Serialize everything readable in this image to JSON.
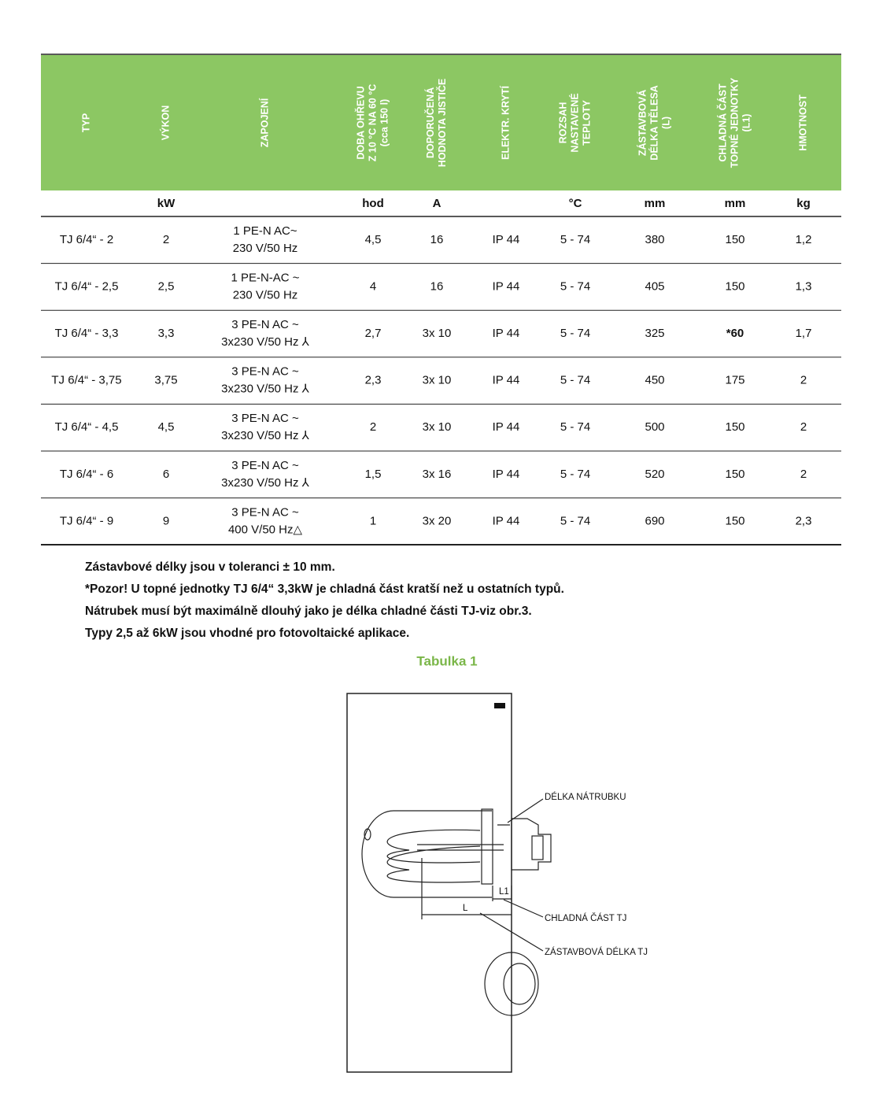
{
  "table": {
    "headers": [
      [
        "TYP"
      ],
      [
        "VÝKON"
      ],
      [
        "ZAPOJENÍ"
      ],
      [
        "DOBA OHŘEVU",
        "Z 10 °C NA 60 °C",
        "(cca 150 l)"
      ],
      [
        "DOPORUČENÁ",
        "HODNOTA JISTIČE"
      ],
      [
        "ELEKTR. KRYTÍ"
      ],
      [
        "ROZSAH",
        "NASTAVENÉ",
        "TEPLOTY"
      ],
      [
        "ZÁSTAVBOVÁ",
        "DÉLKA TĚLESA",
        "(L)"
      ],
      [
        "CHLADNÁ ČÁST",
        "TOPNÉ JEDNOTKY",
        "(L1)"
      ],
      [
        "HMOTNOST"
      ]
    ],
    "units": [
      null,
      "kW",
      null,
      "hod",
      "A",
      null,
      "°C",
      "mm",
      "mm",
      "kg"
    ],
    "rows": [
      [
        "TJ 6/4“ - 2",
        "2",
        [
          "1 PE-N AC~",
          "230 V/50 Hz"
        ],
        "4,5",
        "16",
        "IP 44",
        "5 - 74",
        "380",
        "150",
        "1,2"
      ],
      [
        "TJ 6/4“ - 2,5",
        "2,5",
        [
          "1 PE-N-AC ~",
          "230 V/50 Hz"
        ],
        "4",
        "16",
        "IP 44",
        "5 - 74",
        "405",
        "150",
        "1,3"
      ],
      [
        "TJ 6/4“ - 3,3",
        "3,3",
        [
          "3 PE-N AC ~",
          "3x230 V/50 Hz ⅄"
        ],
        "2,7",
        "3x 10",
        "IP 44",
        "5 - 74",
        "325",
        "*60",
        "1,7"
      ],
      [
        "TJ 6/4“ - 3,75",
        "3,75",
        [
          "3 PE-N AC ~",
          "3x230 V/50 Hz ⅄"
        ],
        "2,3",
        "3x 10",
        "IP 44",
        "5 - 74",
        "450",
        "175",
        "2"
      ],
      [
        "TJ 6/4“ - 4,5",
        "4,5",
        [
          "3 PE-N AC ~",
          "3x230 V/50 Hz ⅄"
        ],
        "2",
        "3x 10",
        "IP 44",
        "5 - 74",
        "500",
        "150",
        "2"
      ],
      [
        "TJ 6/4“ - 6",
        "6",
        [
          "3 PE-N AC ~",
          "3x230 V/50 Hz ⅄"
        ],
        "1,5",
        "3x 16",
        "IP 44",
        "5 - 74",
        "520",
        "150",
        "2"
      ],
      [
        "TJ 6/4“ - 9",
        "9",
        [
          "3 PE-N AC ~",
          "400 V/50 Hz△"
        ],
        "1",
        "3x 20",
        "IP 44",
        "5 - 74",
        "690",
        "150",
        "2,3"
      ]
    ]
  },
  "notes": [
    "Zástavbové délky jsou v toleranci ± 10 mm.",
    "*Pozor! U topné jednotky TJ 6/4“ 3,3kW je chladná část kratší než u ostatních typů.",
    "Nátrubek musí být maximálně dlouhý jako je délka chladné části TJ-viz obr.3.",
    "Typy 2,5 až 6kW jsou vhodné pro fotovoltaické aplikace."
  ],
  "caption": "Tabulka 1",
  "diagram": {
    "labels": [
      "DÉLKA NÁTRUBKU",
      "CHLADNÁ ČÁST TJ",
      "ZÁSTAVBOVÁ DÉLKA TJ"
    ],
    "dims": [
      "L1",
      "L"
    ]
  }
}
